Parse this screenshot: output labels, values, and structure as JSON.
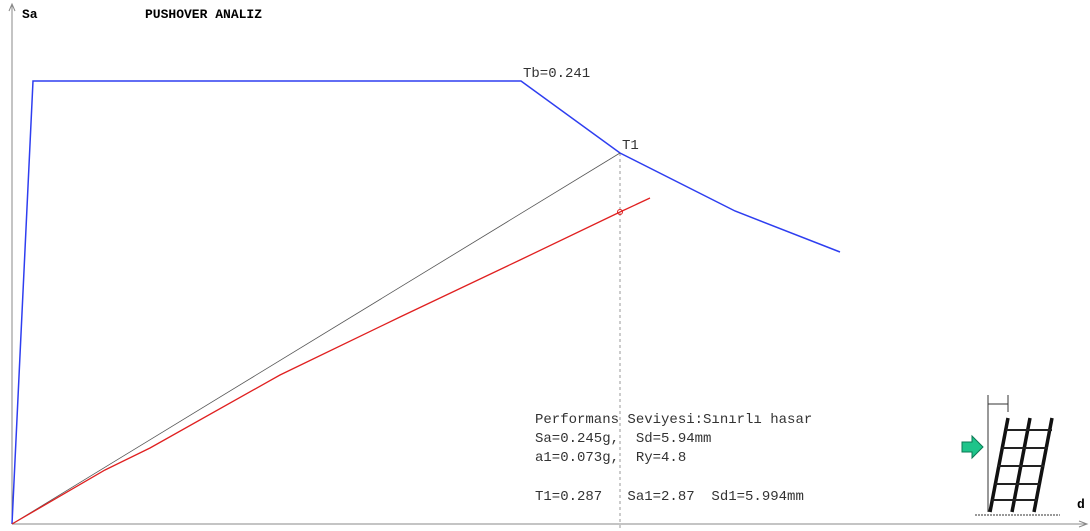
{
  "axes": {
    "y_label": "Sa",
    "x_label": "d"
  },
  "header": {
    "title": "PUSHOVER ANALIZ"
  },
  "annotations": {
    "tb": "Tb=0.241",
    "t1": "T1"
  },
  "info": {
    "lines": [
      "Performans Seviyesi:Sınırlı hasar",
      "Sa=0.245g,  Sd=5.94mm",
      "a1=0.073g,  Ry=4.8",
      "T1=0.287   Sa1=2.87  Sd1=5.994mm"
    ]
  }
}
